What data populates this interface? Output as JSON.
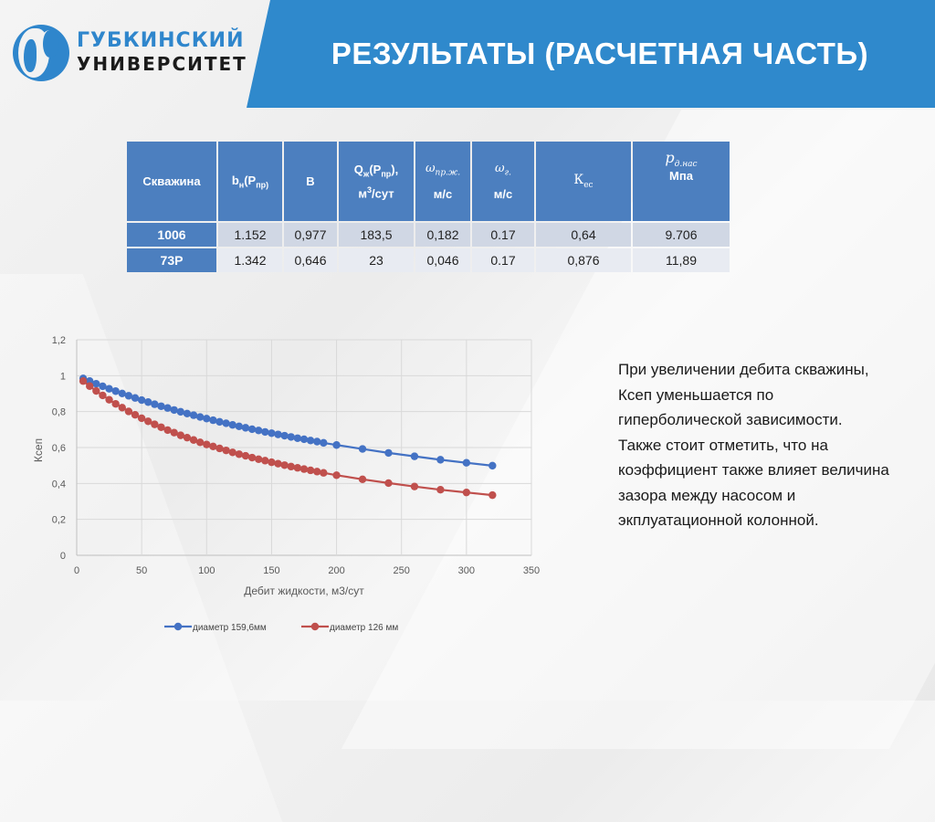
{
  "header": {
    "logo": {
      "line1": "ГУБКИНСКИЙ",
      "line2": "УНИВЕРСИТЕТ",
      "icon": "gubkin-university-logo-icon"
    },
    "title": "РЕЗУЛЬТАТЫ (РАСЧЕТНАЯ ЧАСТЬ)"
  },
  "colors": {
    "banner": "#2f89cc",
    "table_header": "#4c7fbf",
    "row_odd": "#d0d7e4",
    "row_even": "#e8ebf2",
    "series_blue": "#4472c4",
    "series_red": "#c0504d"
  },
  "table": {
    "headers": [
      {
        "main": "Скважина"
      },
      {
        "main": "b",
        "sub": "н",
        "paren": "(P",
        "paren_sub": "пр)"
      },
      {
        "main": "B"
      },
      {
        "main": "Q",
        "sub": "ж",
        "paren": "(P",
        "paren_sub": "пр",
        "tail": "),",
        "line2": "м",
        "sup": "3",
        "line2_tail": "/сут"
      },
      {
        "main": "ω",
        "sub": "пр.ж.",
        "line2": "м/с"
      },
      {
        "main": "ω",
        "sub": "г.",
        "line2": "м/с"
      },
      {
        "main": "К",
        "sub": "ес"
      },
      {
        "main": "p",
        "sub": "д.нас",
        "line2": "Мпа"
      }
    ],
    "rows": [
      {
        "well": "1006",
        "cells": [
          "1.152",
          "0,977",
          "183,5",
          "0,182",
          "0.17",
          "0,64",
          "9.706"
        ]
      },
      {
        "well": "73Р",
        "cells": [
          "1.342",
          "0,646",
          "23",
          "0,046",
          "0.17",
          "0,876",
          "11,89"
        ]
      }
    ]
  },
  "chart_data": {
    "type": "line",
    "title": "",
    "xlabel": "Дебит жидкости, м3/сут",
    "ylabel": "Ксеп",
    "xlim": [
      0,
      350
    ],
    "ylim": [
      0,
      1.2
    ],
    "xticks": [
      "0",
      "50",
      "100",
      "150",
      "200",
      "250",
      "300",
      "350"
    ],
    "yticks": [
      "0",
      "0,2",
      "0,4",
      "0,6",
      "0,8",
      "1",
      "1,2"
    ],
    "grid": true,
    "legend_position": "bottom",
    "x": [
      5,
      10,
      15,
      20,
      25,
      30,
      35,
      40,
      45,
      50,
      55,
      60,
      65,
      70,
      75,
      80,
      85,
      90,
      95,
      100,
      105,
      110,
      115,
      120,
      125,
      130,
      135,
      140,
      145,
      150,
      155,
      160,
      165,
      170,
      175,
      180,
      185,
      190,
      200,
      220,
      240,
      260,
      280,
      300,
      320
    ],
    "series": [
      {
        "name": "диаметр 159,6мм",
        "color": "#4472c4",
        "values": [
          0.985,
          0.97,
          0.955,
          0.941,
          0.927,
          0.914,
          0.901,
          0.888,
          0.876,
          0.864,
          0.853,
          0.841,
          0.83,
          0.82,
          0.809,
          0.799,
          0.789,
          0.78,
          0.77,
          0.761,
          0.752,
          0.743,
          0.735,
          0.726,
          0.718,
          0.71,
          0.702,
          0.695,
          0.687,
          0.68,
          0.673,
          0.666,
          0.659,
          0.652,
          0.646,
          0.639,
          0.633,
          0.626,
          0.614,
          0.592,
          0.57,
          0.551,
          0.532,
          0.515,
          0.499
        ]
      },
      {
        "name": "диаметр 126 мм",
        "color": "#c0504d",
        "values": [
          0.97,
          0.942,
          0.915,
          0.89,
          0.866,
          0.843,
          0.822,
          0.801,
          0.782,
          0.763,
          0.746,
          0.729,
          0.713,
          0.697,
          0.683,
          0.668,
          0.655,
          0.642,
          0.629,
          0.617,
          0.606,
          0.595,
          0.584,
          0.573,
          0.563,
          0.554,
          0.544,
          0.535,
          0.527,
          0.518,
          0.51,
          0.502,
          0.494,
          0.487,
          0.48,
          0.473,
          0.466,
          0.459,
          0.446,
          0.423,
          0.402,
          0.383,
          0.365,
          0.35,
          0.335
        ]
      }
    ]
  },
  "note": {
    "paragraphs": [
      "При увеличении дебита скважины, Ксеп уменьшается по гиперболической зависимости.",
      "Также стоит отметить, что на коэффициент также влияет величина зазора между насосом и экплуатационной колонной."
    ]
  }
}
